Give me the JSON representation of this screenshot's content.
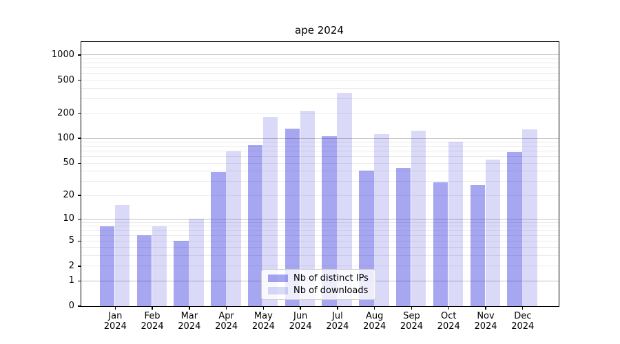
{
  "chart_data": {
    "type": "bar",
    "title": "ape 2024",
    "categories": [
      "Jan 2024",
      "Feb 2024",
      "Mar 2024",
      "Apr 2024",
      "May 2024",
      "Jun 2024",
      "Jul 2024",
      "Aug 2024",
      "Sep 2024",
      "Oct 2024",
      "Nov 2024",
      "Dec 2024"
    ],
    "x_tick_months": [
      "Jan",
      "Feb",
      "Mar",
      "Apr",
      "May",
      "Jun",
      "Jul",
      "Aug",
      "Sep",
      "Oct",
      "Nov",
      "Dec"
    ],
    "x_tick_year": "2024",
    "series": [
      {
        "name": "Nb of distinct IPs",
        "color": "rgba(10,10,215,0.36)",
        "values": [
          8,
          6,
          5,
          39,
          83,
          130,
          107,
          41,
          44,
          29,
          27,
          68
        ]
      },
      {
        "name": "Nb of downloads",
        "color": "rgba(10,10,210,0.15)",
        "values": [
          15,
          8,
          10,
          70,
          180,
          215,
          355,
          112,
          124,
          92,
          55,
          128
        ]
      }
    ],
    "xlabel": "",
    "ylabel": "",
    "y_scale": "log10(1+value)",
    "ylim": [
      0,
      1430
    ],
    "y_tick_labels": [
      0,
      1,
      2,
      5,
      10,
      20,
      50,
      100,
      200,
      500,
      1000
    ],
    "major_gridlines": [
      1,
      10,
      100,
      1000
    ],
    "minor_gridlines": [
      2,
      3,
      4,
      5,
      6,
      7,
      8,
      9,
      20,
      30,
      40,
      50,
      60,
      70,
      80,
      90,
      200,
      300,
      400,
      500,
      600,
      700,
      800,
      900
    ],
    "grid": "on",
    "legend": {
      "position": "lower center",
      "entries": [
        "Nb of distinct IPs",
        "Nb of downloads"
      ]
    },
    "colors": {
      "major_grid": "#c0c0c0",
      "minor_grid": "#eaeaea",
      "spine": "#000000",
      "text": "#000000"
    }
  }
}
